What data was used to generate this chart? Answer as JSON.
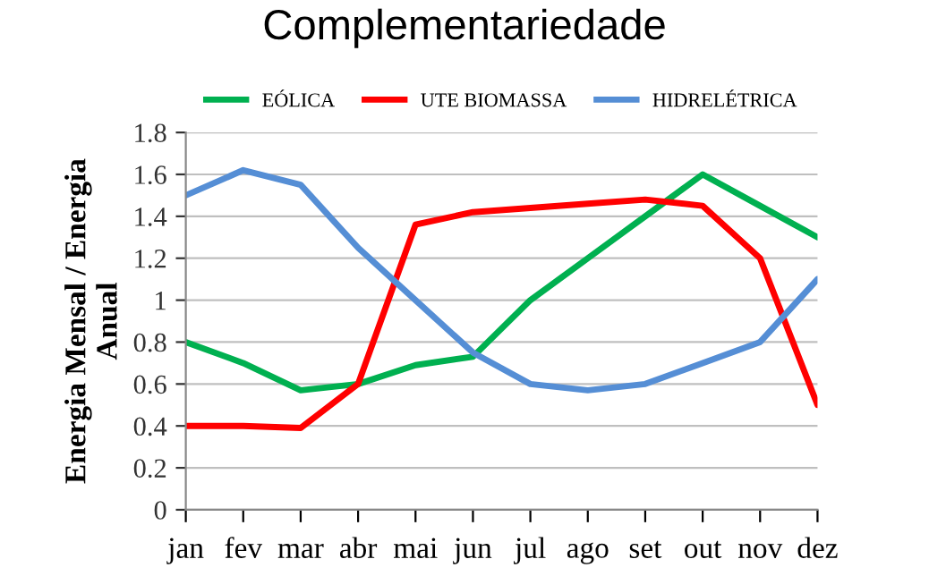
{
  "chart_data": {
    "type": "line",
    "title": "Complementariedade",
    "ylabel": "Energia Mensal / Energia\nAnual",
    "categories": [
      "jan",
      "fev",
      "mar",
      "abr",
      "mai",
      "jun",
      "jul",
      "ago",
      "set",
      "out",
      "nov",
      "dez"
    ],
    "series": [
      {
        "name": "EÓLICA",
        "color": "#00b050",
        "values": [
          0.8,
          0.7,
          0.57,
          0.6,
          0.69,
          0.73,
          1.0,
          1.2,
          1.4,
          1.6,
          1.45,
          1.3
        ]
      },
      {
        "name": "UTE BIOMASSA",
        "color": "#ff0000",
        "values": [
          0.4,
          0.4,
          0.39,
          0.6,
          1.36,
          1.42,
          1.44,
          1.46,
          1.48,
          1.45,
          1.2,
          0.5
        ]
      },
      {
        "name": "HIDRELÉTRICA",
        "color": "#558ed5",
        "values": [
          1.5,
          1.62,
          1.55,
          1.25,
          1.0,
          0.75,
          0.6,
          0.57,
          0.6,
          0.7,
          0.8,
          1.1
        ]
      }
    ],
    "ylim": [
      0,
      1.8
    ],
    "yticks": [
      0,
      0.2,
      0.4,
      0.6,
      0.8,
      1,
      1.2,
      1.4,
      1.6,
      1.8
    ],
    "grid": "y",
    "legend": "top",
    "marker": "none",
    "line_style": "solid"
  }
}
